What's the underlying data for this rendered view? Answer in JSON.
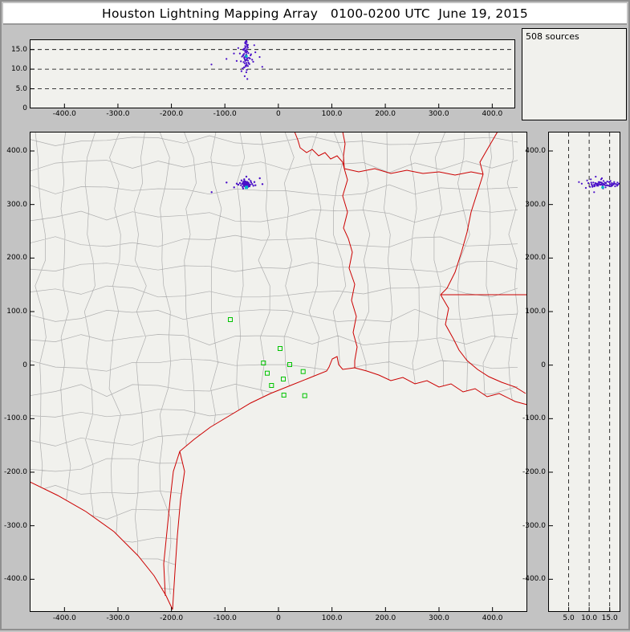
{
  "title": "Houston Lightning Mapping Array   0100-0200 UTC  June 19, 2015",
  "sources_label": "508 sources",
  "colors": {
    "frame": "#c3c3c3",
    "panel_bg": "#f1f1ed",
    "panel_border": "#000000",
    "county": "#aeaeae",
    "state_border": "#cc0000",
    "station": "#00c400",
    "source": "#4a10c8",
    "latest_source": "#00b4c8",
    "tick_text": "#000000"
  },
  "chart_data": {
    "type": "scatter",
    "title": "Houston Lightning Mapping Array",
    "time_range_utc": "0100-0200",
    "date": "June 19, 2015",
    "source_count": 508,
    "units": "km",
    "grid": "dashed altitude reference lines at 5, 10, 15 km",
    "legend_position": "none",
    "xlim": [
      -465,
      465
    ],
    "xlim_top": [
      -465,
      443
    ],
    "ylim": [
      -461,
      436
    ],
    "zlim": [
      0,
      17.6
    ],
    "x_ticks": {
      "values": [
        -400,
        -300,
        -200,
        -100,
        0,
        100,
        200,
        300,
        400
      ],
      "labels": [
        "-400.0",
        "-300.0",
        "-200.0",
        "-100.0",
        "0",
        "100.0",
        "200.0",
        "300.0",
        "400.0"
      ]
    },
    "y_ticks": {
      "values": [
        400,
        300,
        200,
        100,
        0,
        -100,
        -200,
        -300,
        -400
      ],
      "labels": [
        "400.0",
        "300.0",
        "200.0",
        "100.0",
        "0",
        "-100.0",
        "-200.0",
        "-300.0",
        "-400.0"
      ]
    },
    "alt_ticks": {
      "values": [
        5,
        10,
        15
      ],
      "labels": [
        "5.0",
        "10.0",
        "15.0"
      ]
    },
    "alt_left_ticks": {
      "values": [
        15,
        10,
        5,
        0
      ],
      "labels": [
        "15.0",
        "10.0",
        "5.0",
        "0"
      ]
    },
    "stations_xy_km": [
      [
        -90,
        85
      ],
      [
        3,
        31
      ],
      [
        -28,
        4
      ],
      [
        21,
        1
      ],
      [
        -21,
        -15
      ],
      [
        46,
        -12
      ],
      [
        9,
        -26
      ],
      [
        -13,
        -38
      ],
      [
        10,
        -56
      ],
      [
        49,
        -57
      ]
    ],
    "latest_source_xyz_km": [
      -60,
      332,
      13.3
    ],
    "sources_xyz_km": [
      [
        -62,
        337,
        12.1
      ],
      [
        -61,
        339,
        13.4
      ],
      [
        -60,
        336,
        14.2
      ],
      [
        -63,
        340,
        11.5
      ],
      [
        -59,
        338,
        15.1
      ],
      [
        -58,
        341,
        12.8
      ],
      [
        -64,
        336,
        13.9
      ],
      [
        -60,
        334,
        10.9
      ],
      [
        -57,
        339,
        16.2
      ],
      [
        -62,
        342,
        14.8
      ],
      [
        -61,
        335,
        15.6
      ],
      [
        -59,
        337,
        11.2
      ],
      [
        -63,
        338,
        12.5
      ],
      [
        -60,
        340,
        13.1
      ],
      [
        -58,
        336,
        14.5
      ],
      [
        -62,
        339,
        15.9
      ],
      [
        -64,
        341,
        10.5
      ],
      [
        -57,
        335,
        12.2
      ],
      [
        -61,
        338,
        16.5
      ],
      [
        -60,
        337,
        13.7
      ],
      [
        -65,
        339,
        11.8
      ],
      [
        -56,
        340,
        14.1
      ],
      [
        -63,
        334,
        15.3
      ],
      [
        -59,
        342,
        12.6
      ],
      [
        -62,
        336,
        13.3
      ],
      [
        -58,
        338,
        16.0
      ],
      [
        -61,
        341,
        11.0
      ],
      [
        -60,
        335,
        14.7
      ],
      [
        -64,
        337,
        12.9
      ],
      [
        -57,
        340,
        15.5
      ],
      [
        -66,
        338,
        13.6
      ],
      [
        -55,
        336,
        11.4
      ],
      [
        -62,
        343,
        14.4
      ],
      [
        -59,
        334,
        16.3
      ],
      [
        -61,
        336,
        10.7
      ],
      [
        -63,
        341,
        13.0
      ],
      [
        -58,
        337,
        15.8
      ],
      [
        -60,
        342,
        12.3
      ],
      [
        -65,
        335,
        14.9
      ],
      [
        -56,
        338,
        11.7
      ],
      [
        -68,
        339,
        13.2
      ],
      [
        -53,
        337,
        12.7
      ],
      [
        -64,
        344,
        15.2
      ],
      [
        -57,
        333,
        10.8
      ],
      [
        -62,
        338,
        16.6
      ],
      [
        -59,
        340,
        9.8
      ],
      [
        -70,
        336,
        12.0
      ],
      [
        -51,
        341,
        13.8
      ],
      [
        -66,
        342,
        15.0
      ],
      [
        -54,
        334,
        11.3
      ],
      [
        -72,
        340,
        14.0
      ],
      [
        -49,
        338,
        12.4
      ],
      [
        -67,
        333,
        10.2
      ],
      [
        -52,
        344,
        13.5
      ],
      [
        -75,
        337,
        15.4
      ],
      [
        -47,
        335,
        11.9
      ],
      [
        -69,
        345,
        9.5
      ],
      [
        -45,
        342,
        16.1
      ],
      [
        -78,
        339,
        12.1
      ],
      [
        -43,
        336,
        14.3
      ],
      [
        -60,
        339,
        17.2
      ],
      [
        -61,
        337,
        17.0
      ],
      [
        -62,
        335,
        16.8
      ],
      [
        -59,
        341,
        16.9
      ],
      [
        -63,
        339,
        8.2
      ],
      [
        -58,
        342,
        7.5
      ],
      [
        -60,
        331,
        9.2
      ],
      [
        -64,
        347,
        10.4
      ],
      [
        -55,
        347,
        12.9
      ],
      [
        -66,
        330,
        13.4
      ],
      [
        -125,
        323,
        11.2
      ],
      [
        -97,
        341,
        12.6
      ],
      [
        -35,
        349,
        13.1
      ],
      [
        -60,
        352,
        11.6
      ],
      [
        -83,
        332,
        14.0
      ],
      [
        -30,
        338,
        10.6
      ]
    ]
  }
}
